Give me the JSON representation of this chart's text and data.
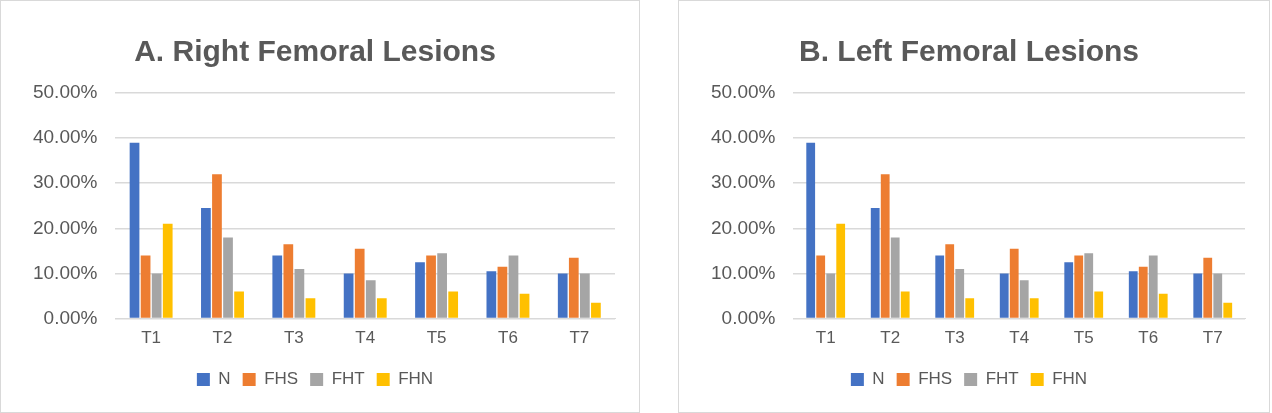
{
  "chart_data": [
    {
      "type": "bar",
      "title": "A. Right Femoral Lesions",
      "categories": [
        "T1",
        "T2",
        "T3",
        "T4",
        "T5",
        "T6",
        "T7"
      ],
      "series": [
        {
          "name": "N",
          "color": "#4472c4",
          "values": [
            39,
            24.5,
            14,
            10,
            12.5,
            10.5,
            10
          ]
        },
        {
          "name": "FHS",
          "color": "#ed7d31",
          "values": [
            14,
            32,
            16.5,
            15.5,
            14,
            11.5,
            13.5
          ]
        },
        {
          "name": "FHT",
          "color": "#a5a5a5",
          "values": [
            10,
            18,
            11,
            8.5,
            14.5,
            14,
            10
          ]
        },
        {
          "name": "FHN",
          "color": "#ffc000",
          "values": [
            21,
            6,
            4.5,
            4.5,
            6,
            5.5,
            3.5
          ]
        }
      ],
      "ylim": [
        0,
        50
      ],
      "yticks": [
        {
          "value": 0,
          "label": "0.00%"
        },
        {
          "value": 10,
          "label": "10.00%"
        },
        {
          "value": 20,
          "label": "20.00%"
        },
        {
          "value": 30,
          "label": "30.00%"
        },
        {
          "value": 40,
          "label": "40.00%"
        },
        {
          "value": 50,
          "label": "50.00%"
        }
      ],
      "grid": "y",
      "legend": "bottom"
    },
    {
      "type": "bar",
      "title": "B. Left Femoral Lesions",
      "categories": [
        "T1",
        "T2",
        "T3",
        "T4",
        "T5",
        "T6",
        "T7"
      ],
      "series": [
        {
          "name": "N",
          "color": "#4472c4",
          "values": [
            39,
            24.5,
            14,
            10,
            12.5,
            10.5,
            10
          ]
        },
        {
          "name": "FHS",
          "color": "#ed7d31",
          "values": [
            14,
            32,
            16.5,
            15.5,
            14,
            11.5,
            13.5
          ]
        },
        {
          "name": "FHT",
          "color": "#a5a5a5",
          "values": [
            10,
            18,
            11,
            8.5,
            14.5,
            14,
            10
          ]
        },
        {
          "name": "FHN",
          "color": "#ffc000",
          "values": [
            21,
            6,
            4.5,
            4.5,
            6,
            5.5,
            3.5
          ]
        }
      ],
      "ylim": [
        0,
        50
      ],
      "yticks": [
        {
          "value": 0,
          "label": "0.00%"
        },
        {
          "value": 10,
          "label": "10.00%"
        },
        {
          "value": 20,
          "label": "20.00%"
        },
        {
          "value": 30,
          "label": "30.00%"
        },
        {
          "value": 40,
          "label": "40.00%"
        },
        {
          "value": 50,
          "label": "50.00%"
        }
      ],
      "grid": "y",
      "legend": "bottom"
    }
  ]
}
